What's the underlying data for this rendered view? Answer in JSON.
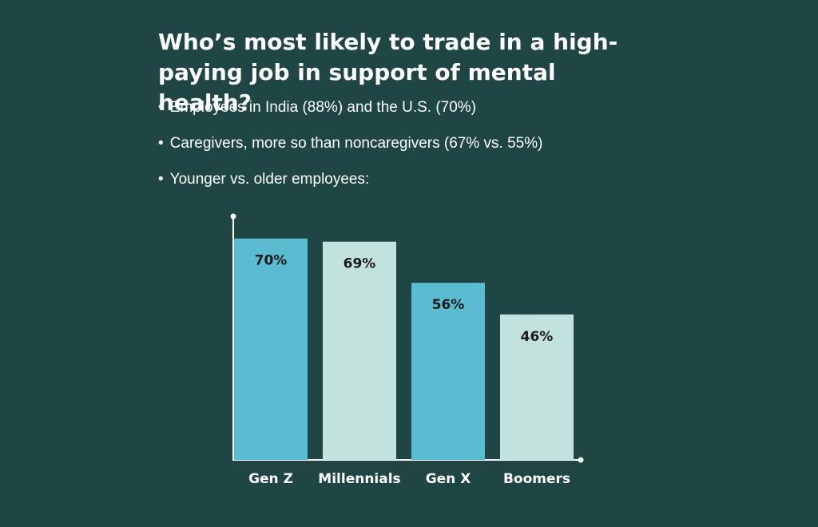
{
  "chart_data": {
    "type": "bar",
    "title": "Who’s most likely to trade in a high-paying job in support of mental health?",
    "notes": [
      "Employees in India (88%) and the U.S. (70%)",
      "Caregivers, more so than noncaregivers (67% vs. 55%)",
      "Younger vs. older employees:"
    ],
    "categories": [
      "Gen Z",
      "Millennials",
      "Gen X",
      "Boomers"
    ],
    "values": [
      70,
      69,
      56,
      46
    ],
    "value_labels": [
      "70%",
      "69%",
      "56%",
      "46%"
    ],
    "colors": [
      "#5bbbd0",
      "#c2e3dd",
      "#5bbbd0",
      "#c2e3dd"
    ],
    "ylim": [
      0,
      77
    ]
  }
}
